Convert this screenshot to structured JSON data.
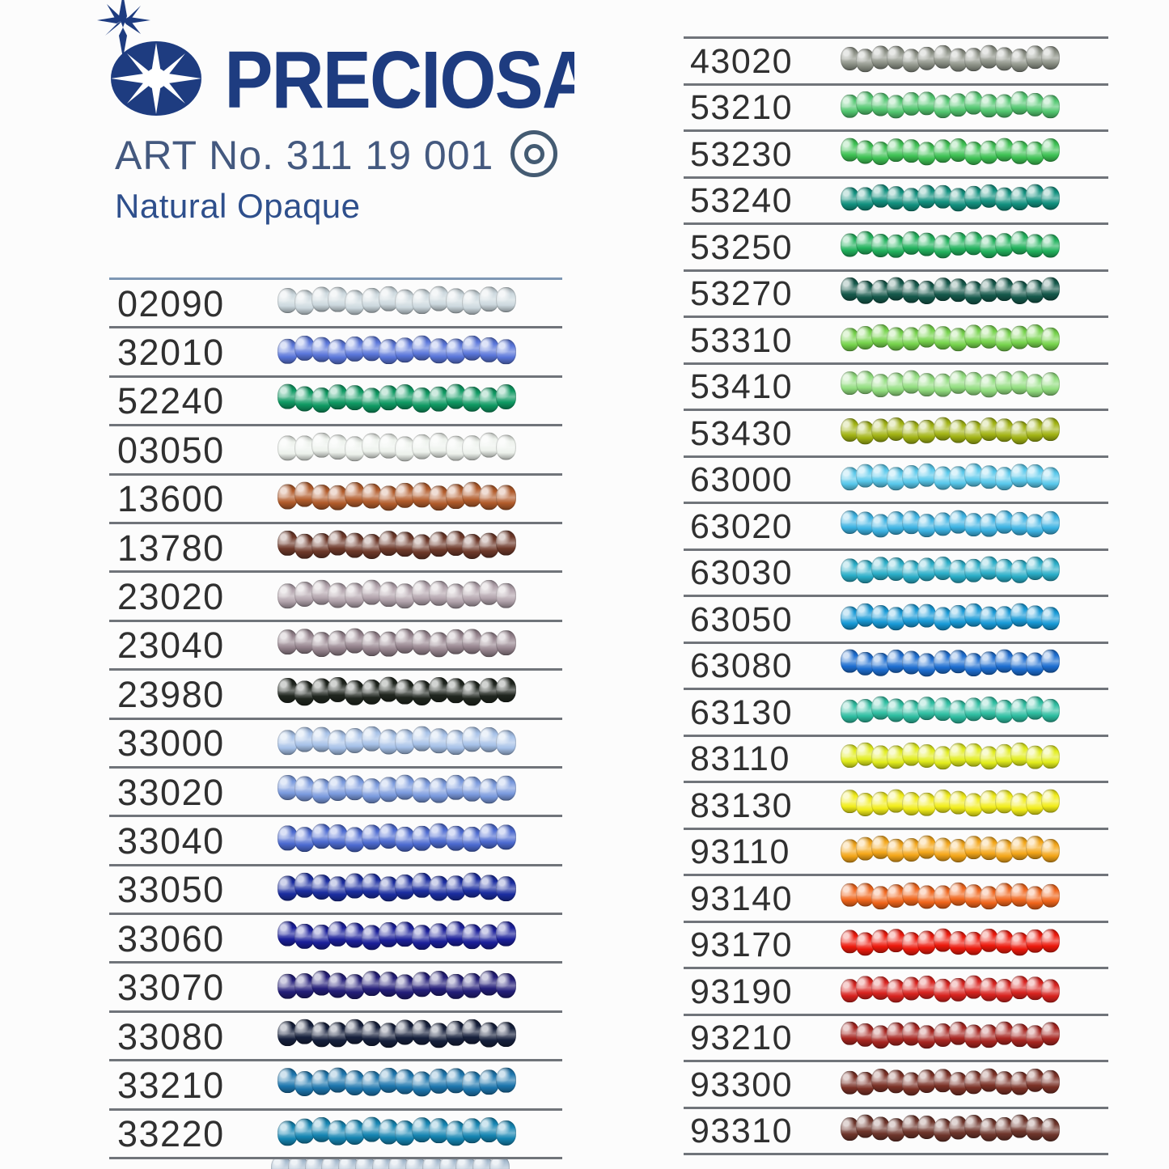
{
  "header": {
    "brand": "PRECIOSA",
    "art_no": "ART No. 311 19 001",
    "subtitle": "Natural Opaque",
    "brand_color": "#1e3c80"
  },
  "columns": {
    "left": {
      "rows": [
        {
          "code": "02090",
          "color": "#ccd8de"
        },
        {
          "code": "32010",
          "color": "#5a76da"
        },
        {
          "code": "52240",
          "color": "#0f9a63"
        },
        {
          "code": "03050",
          "color": "#edf2ec"
        },
        {
          "code": "13600",
          "color": "#b25c2b"
        },
        {
          "code": "13780",
          "color": "#6e392a"
        },
        {
          "code": "23020",
          "color": "#b2a3ac"
        },
        {
          "code": "23040",
          "color": "#96848e"
        },
        {
          "code": "23980",
          "color": "#20261f"
        },
        {
          "code": "33000",
          "color": "#a6c1e8"
        },
        {
          "code": "33020",
          "color": "#7a9ade"
        },
        {
          "code": "33040",
          "color": "#4c6ad0"
        },
        {
          "code": "33050",
          "color": "#1b2da0"
        },
        {
          "code": "33060",
          "color": "#1b1f9a"
        },
        {
          "code": "33070",
          "color": "#241e79"
        },
        {
          "code": "33080",
          "color": "#16203c"
        },
        {
          "code": "33210",
          "color": "#1d76ae"
        },
        {
          "code": "33220",
          "color": "#1585b2"
        }
      ],
      "partial_row_color": "#a9bdd0"
    },
    "right": {
      "rows": [
        {
          "code": "43020",
          "color": "#8d9287"
        },
        {
          "code": "53210",
          "color": "#52c770"
        },
        {
          "code": "53230",
          "color": "#3ec254"
        },
        {
          "code": "53240",
          "color": "#12917f"
        },
        {
          "code": "53250",
          "color": "#22b25d"
        },
        {
          "code": "53270",
          "color": "#15594b"
        },
        {
          "code": "53310",
          "color": "#76d34c"
        },
        {
          "code": "53410",
          "color": "#92de7f"
        },
        {
          "code": "53430",
          "color": "#a2b414"
        },
        {
          "code": "63000",
          "color": "#58c8eb"
        },
        {
          "code": "63020",
          "color": "#3cb3e3"
        },
        {
          "code": "63030",
          "color": "#2aaec8"
        },
        {
          "code": "63050",
          "color": "#189ad7"
        },
        {
          "code": "63080",
          "color": "#1d6ed1"
        },
        {
          "code": "63130",
          "color": "#2ebea1"
        },
        {
          "code": "83110",
          "color": "#e2ed1d"
        },
        {
          "code": "83130",
          "color": "#f2ed1a"
        },
        {
          "code": "93110",
          "color": "#f4a619"
        },
        {
          "code": "93140",
          "color": "#f0651b"
        },
        {
          "code": "93170",
          "color": "#ed190c"
        },
        {
          "code": "93190",
          "color": "#d8231f"
        },
        {
          "code": "93210",
          "color": "#a72520"
        },
        {
          "code": "93300",
          "color": "#7b3126"
        },
        {
          "code": "93310",
          "color": "#6e352b"
        }
      ]
    }
  }
}
